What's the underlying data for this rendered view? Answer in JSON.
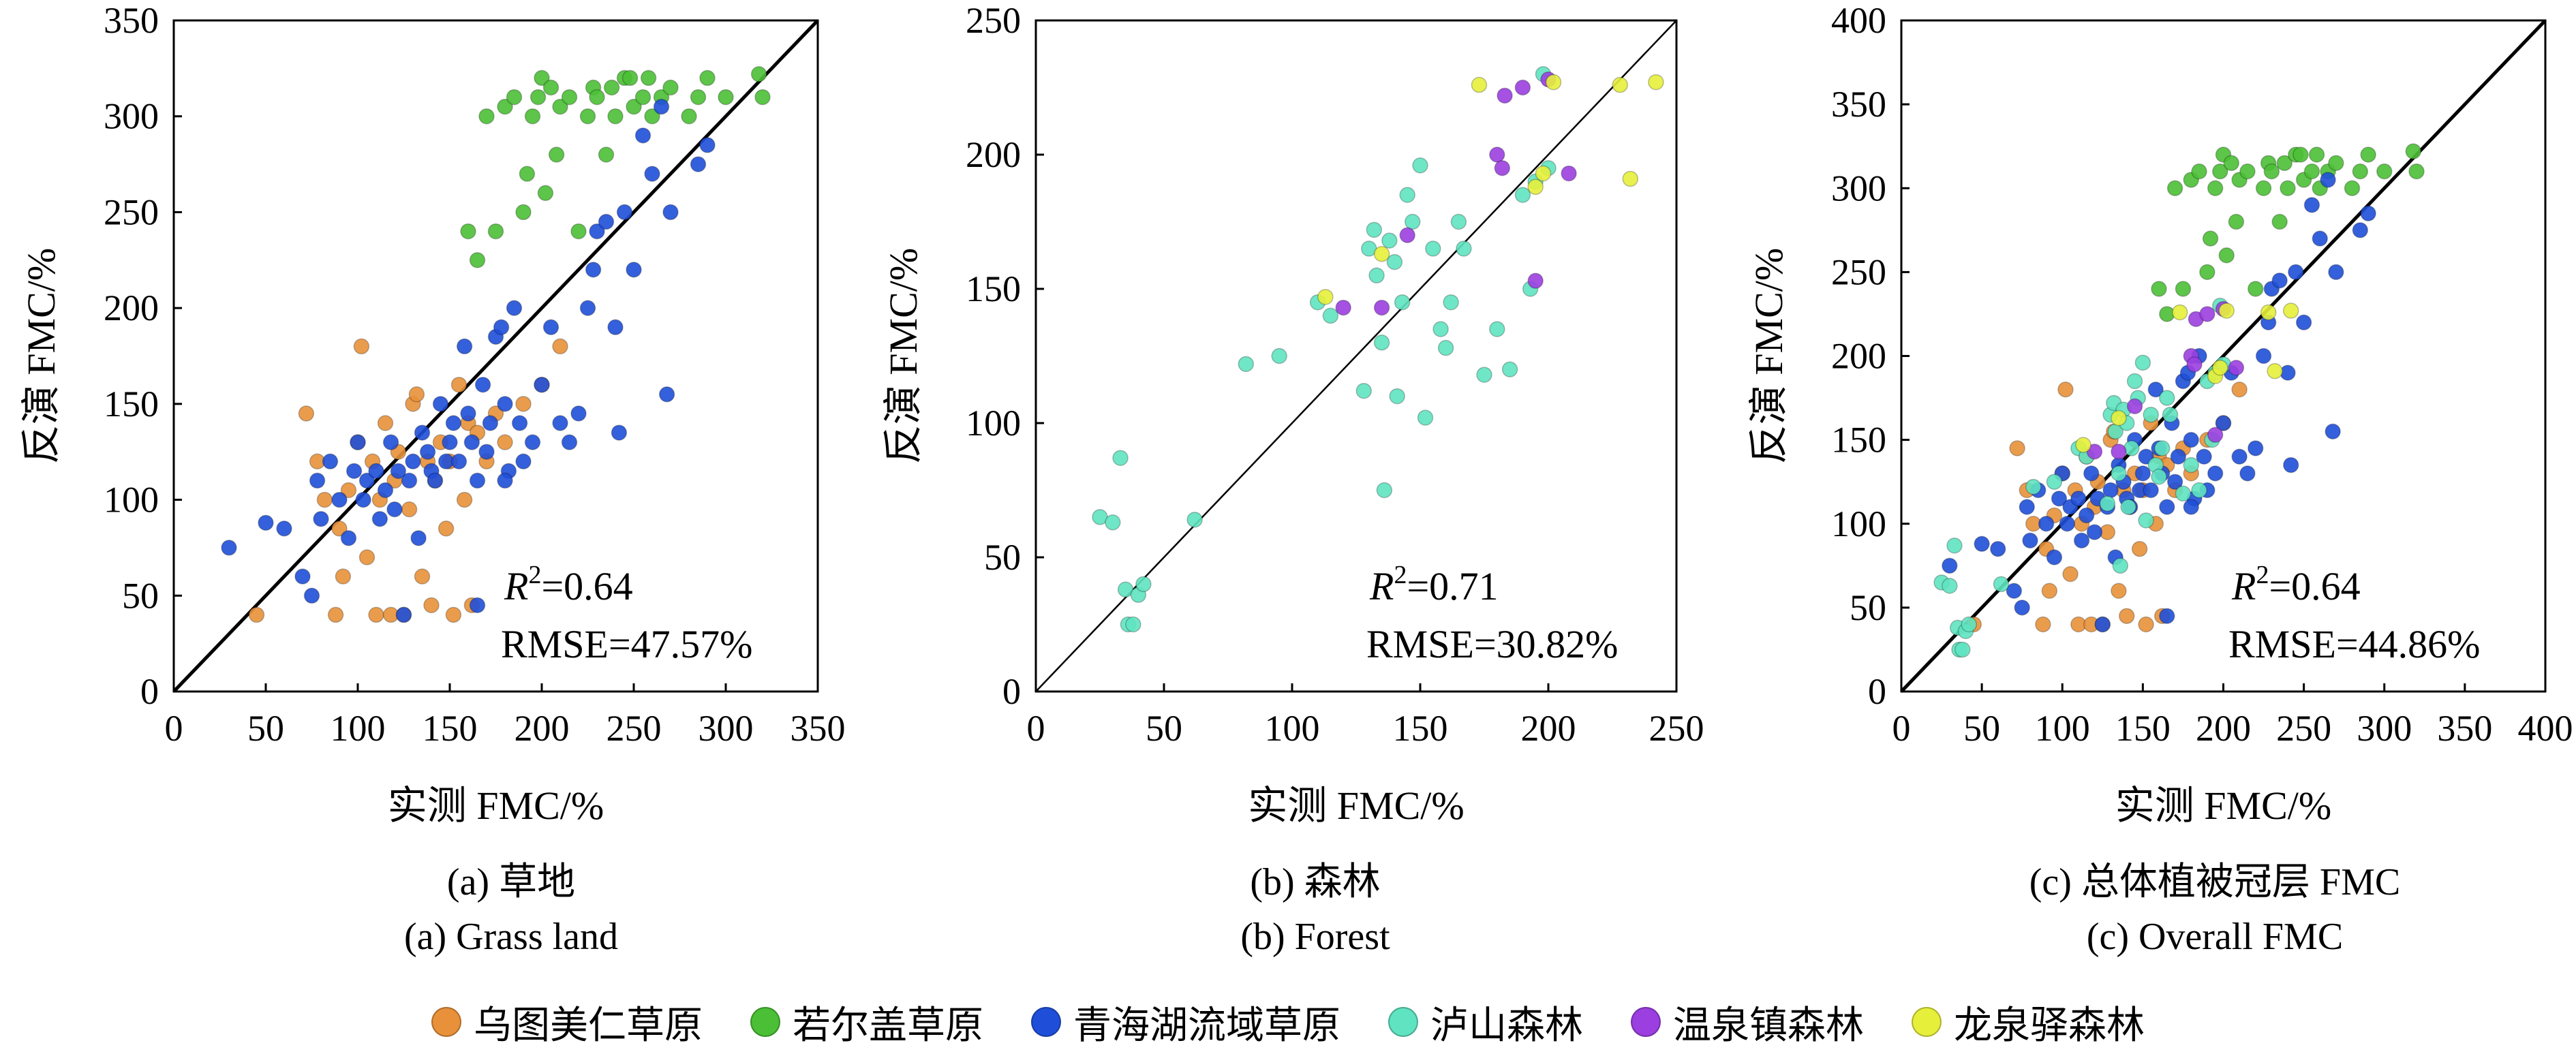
{
  "chart_data": [
    {
      "type": "scatter",
      "id": "a",
      "caption_cn": "(a) 草地",
      "caption_en": "(a) Grass land",
      "xlabel": "实测 FMC/%",
      "ylabel": "反演 FMC/%",
      "xlim": [
        0,
        350
      ],
      "ylim": [
        0,
        350
      ],
      "xticks": [
        0,
        50,
        100,
        150,
        200,
        250,
        300,
        350
      ],
      "yticks": [
        0,
        50,
        100,
        150,
        200,
        250,
        300,
        350
      ],
      "r2_label": "R",
      "r2_value": "=0.64",
      "rmse": "RMSE=47.57%",
      "series": [
        {
          "name": "乌图美仁草原",
          "points": [
            [
              45,
              40
            ],
            [
              72,
              145
            ],
            [
              78,
              120
            ],
            [
              82,
              100
            ],
            [
              88,
              40
            ],
            [
              90,
              85
            ],
            [
              92,
              60
            ],
            [
              95,
              105
            ],
            [
              100,
              130
            ],
            [
              102,
              180
            ],
            [
              105,
              70
            ],
            [
              108,
              120
            ],
            [
              110,
              40
            ],
            [
              112,
              100
            ],
            [
              115,
              140
            ],
            [
              118,
              40
            ],
            [
              120,
              110
            ],
            [
              122,
              125
            ],
            [
              125,
              40
            ],
            [
              128,
              95
            ],
            [
              130,
              150
            ],
            [
              132,
              155
            ],
            [
              135,
              60
            ],
            [
              138,
              120
            ],
            [
              140,
              45
            ],
            [
              142,
              110
            ],
            [
              145,
              130
            ],
            [
              148,
              85
            ],
            [
              150,
              120
            ],
            [
              152,
              40
            ],
            [
              155,
              160
            ],
            [
              158,
              100
            ],
            [
              160,
              140
            ],
            [
              162,
              45
            ],
            [
              165,
              135
            ],
            [
              170,
              120
            ],
            [
              175,
              145
            ],
            [
              180,
              130
            ],
            [
              190,
              150
            ],
            [
              200,
              160
            ],
            [
              210,
              180
            ]
          ]
        },
        {
          "name": "若尔盖草原",
          "points": [
            [
              160,
              240
            ],
            [
              165,
              225
            ],
            [
              170,
              300
            ],
            [
              175,
              240
            ],
            [
              180,
              305
            ],
            [
              185,
              310
            ],
            [
              190,
              250
            ],
            [
              192,
              270
            ],
            [
              195,
              300
            ],
            [
              198,
              310
            ],
            [
              200,
              320
            ],
            [
              202,
              260
            ],
            [
              205,
              315
            ],
            [
              208,
              280
            ],
            [
              210,
              305
            ],
            [
              215,
              310
            ],
            [
              220,
              240
            ],
            [
              225,
              300
            ],
            [
              228,
              315
            ],
            [
              230,
              310
            ],
            [
              235,
              280
            ],
            [
              238,
              315
            ],
            [
              240,
              300
            ],
            [
              245,
              320
            ],
            [
              248,
              320
            ],
            [
              250,
              305
            ],
            [
              255,
              310
            ],
            [
              258,
              320
            ],
            [
              260,
              300
            ],
            [
              265,
              310
            ],
            [
              270,
              315
            ],
            [
              280,
              300
            ],
            [
              285,
              310
            ],
            [
              290,
              320
            ],
            [
              300,
              310
            ],
            [
              318,
              322
            ],
            [
              320,
              310
            ]
          ]
        },
        {
          "name": "青海湖流域草原",
          "points": [
            [
              30,
              75
            ],
            [
              50,
              88
            ],
            [
              60,
              85
            ],
            [
              70,
              60
            ],
            [
              75,
              50
            ],
            [
              78,
              110
            ],
            [
              80,
              90
            ],
            [
              85,
              120
            ],
            [
              90,
              100
            ],
            [
              95,
              80
            ],
            [
              98,
              115
            ],
            [
              100,
              130
            ],
            [
              103,
              100
            ],
            [
              105,
              110
            ],
            [
              110,
              115
            ],
            [
              112,
              90
            ],
            [
              115,
              105
            ],
            [
              118,
              130
            ],
            [
              120,
              95
            ],
            [
              122,
              115
            ],
            [
              125,
              40
            ],
            [
              128,
              110
            ],
            [
              130,
              120
            ],
            [
              133,
              80
            ],
            [
              135,
              135
            ],
            [
              138,
              125
            ],
            [
              140,
              115
            ],
            [
              142,
              110
            ],
            [
              145,
              150
            ],
            [
              148,
              120
            ],
            [
              150,
              130
            ],
            [
              152,
              140
            ],
            [
              155,
              120
            ],
            [
              158,
              180
            ],
            [
              160,
              145
            ],
            [
              162,
              130
            ],
            [
              165,
              110
            ],
            [
              168,
              160
            ],
            [
              170,
              125
            ],
            [
              172,
              140
            ],
            [
              175,
              185
            ],
            [
              178,
              190
            ],
            [
              180,
              150
            ],
            [
              182,
              115
            ],
            [
              185,
              200
            ],
            [
              188,
              140
            ],
            [
              190,
              120
            ],
            [
              195,
              130
            ],
            [
              200,
              160
            ],
            [
              205,
              190
            ],
            [
              210,
              140
            ],
            [
              215,
              130
            ],
            [
              220,
              145
            ],
            [
              225,
              200
            ],
            [
              228,
              220
            ],
            [
              230,
              240
            ],
            [
              235,
              245
            ],
            [
              240,
              190
            ],
            [
              242,
              135
            ],
            [
              245,
              250
            ],
            [
              250,
              220
            ],
            [
              255,
              290
            ],
            [
              260,
              270
            ],
            [
              265,
              305
            ],
            [
              268,
              155
            ],
            [
              270,
              250
            ],
            [
              285,
              275
            ],
            [
              290,
              285
            ],
            [
              180,
              110
            ],
            [
              165,
              45
            ]
          ]
        }
      ]
    },
    {
      "type": "scatter",
      "id": "b",
      "caption_cn": "(b) 森林",
      "caption_en": "(b) Forest",
      "xlabel": "实测 FMC/%",
      "ylabel": "反演 FMC/%",
      "xlim": [
        0,
        250
      ],
      "ylim": [
        0,
        250
      ],
      "xticks": [
        0,
        50,
        100,
        150,
        200,
        250
      ],
      "yticks": [
        0,
        50,
        100,
        150,
        200,
        250
      ],
      "r2_label": "R",
      "r2_value": "=0.71",
      "rmse": "RMSE=30.82%",
      "series": [
        {
          "name": "泸山森林",
          "points": [
            [
              25,
              65
            ],
            [
              30,
              63
            ],
            [
              33,
              87
            ],
            [
              35,
              38
            ],
            [
              36,
              25
            ],
            [
              38,
              25
            ],
            [
              40,
              36
            ],
            [
              42,
              40
            ],
            [
              62,
              64
            ],
            [
              82,
              122
            ],
            [
              95,
              125
            ],
            [
              110,
              145
            ],
            [
              115,
              140
            ],
            [
              128,
              112
            ],
            [
              130,
              165
            ],
            [
              132,
              172
            ],
            [
              133,
              155
            ],
            [
              135,
              130
            ],
            [
              136,
              75
            ],
            [
              138,
              168
            ],
            [
              140,
              160
            ],
            [
              141,
              110
            ],
            [
              143,
              145
            ],
            [
              145,
              185
            ],
            [
              147,
              175
            ],
            [
              150,
              196
            ],
            [
              152,
              102
            ],
            [
              155,
              165
            ],
            [
              158,
              135
            ],
            [
              160,
              128
            ],
            [
              162,
              145
            ],
            [
              165,
              175
            ],
            [
              167,
              165
            ],
            [
              175,
              118
            ],
            [
              180,
              135
            ],
            [
              185,
              120
            ],
            [
              190,
              185
            ],
            [
              193,
              150
            ],
            [
              195,
              190
            ],
            [
              198,
              230
            ],
            [
              200,
              195
            ]
          ]
        },
        {
          "name": "温泉镇森林",
          "points": [
            [
              120,
              143
            ],
            [
              135,
              143
            ],
            [
              145,
              170
            ],
            [
              180,
              200
            ],
            [
              182,
              195
            ],
            [
              183,
              222
            ],
            [
              190,
              225
            ],
            [
              195,
              153
            ],
            [
              200,
              228
            ],
            [
              208,
              193
            ]
          ]
        },
        {
          "name": "龙泉驿森林",
          "points": [
            [
              113,
              147
            ],
            [
              135,
              163
            ],
            [
              173,
              226
            ],
            [
              195,
              188
            ],
            [
              198,
              193
            ],
            [
              202,
              227
            ],
            [
              228,
              226
            ],
            [
              232,
              191
            ],
            [
              242,
              227
            ]
          ]
        }
      ]
    },
    {
      "type": "scatter",
      "id": "c",
      "caption_cn": "(c) 总体植被冠层 FMC",
      "caption_en": "(c) Overall FMC",
      "xlabel": "实测 FMC/%",
      "ylabel": "反演 FMC/%",
      "xlim": [
        0,
        400
      ],
      "ylim": [
        0,
        400
      ],
      "xticks": [
        0,
        50,
        100,
        150,
        200,
        250,
        300,
        350,
        400
      ],
      "yticks": [
        0,
        50,
        100,
        150,
        200,
        250,
        300,
        350,
        400
      ],
      "r2_label": "R",
      "r2_value": "=0.64",
      "rmse": "RMSE=44.86%",
      "merge_all": true,
      "series": []
    }
  ],
  "legend": {
    "items": [
      {
        "label": "乌图美仁草原",
        "color": "#e8913a"
      },
      {
        "label": "若尔盖草原",
        "color": "#4bbf35"
      },
      {
        "label": "青海湖流域草原",
        "color": "#1f4fd8"
      },
      {
        "label": "泸山森林",
        "color": "#5fe3c0"
      },
      {
        "label": "温泉镇森林",
        "color": "#9b3fe0"
      },
      {
        "label": "龙泉驿森林",
        "color": "#e6ef3a"
      }
    ]
  }
}
